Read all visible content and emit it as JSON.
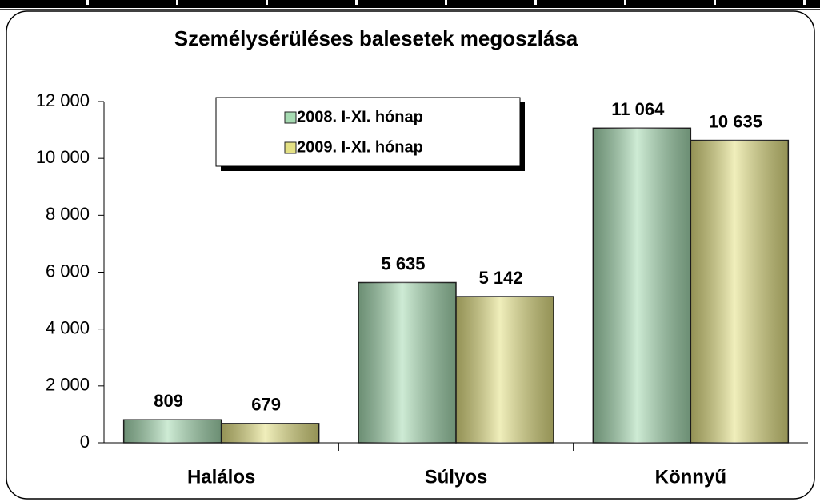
{
  "chart_data": {
    "type": "bar",
    "title": "Személysérüléses balesetek megoszlása",
    "categories": [
      "Halálos",
      "Súlyos",
      "Könnyű"
    ],
    "series": [
      {
        "name": "2008. I-XI. hónap",
        "color": "#a6dbb2",
        "values": [
          809,
          5635,
          11064
        ],
        "value_labels": [
          "809",
          "5 635",
          "11 064"
        ]
      },
      {
        "name": "2009. I-XI. hónap",
        "color": "#e4e184",
        "values": [
          679,
          5142,
          10635
        ],
        "value_labels": [
          "679",
          "5 142",
          "10 635"
        ]
      }
    ],
    "ylim": [
      0,
      12000
    ],
    "yticks": [
      0,
      {
        "value": 2000,
        "label": "2 000"
      },
      {
        "value": 4000,
        "label": "4 000"
      },
      {
        "value": 6000,
        "label": "6 000"
      },
      {
        "value": 8000,
        "label": "8 000"
      },
      {
        "value": 10000,
        "label": "10 000"
      },
      {
        "value": 12000,
        "label": "12 000"
      }
    ],
    "legend": "top-left"
  }
}
